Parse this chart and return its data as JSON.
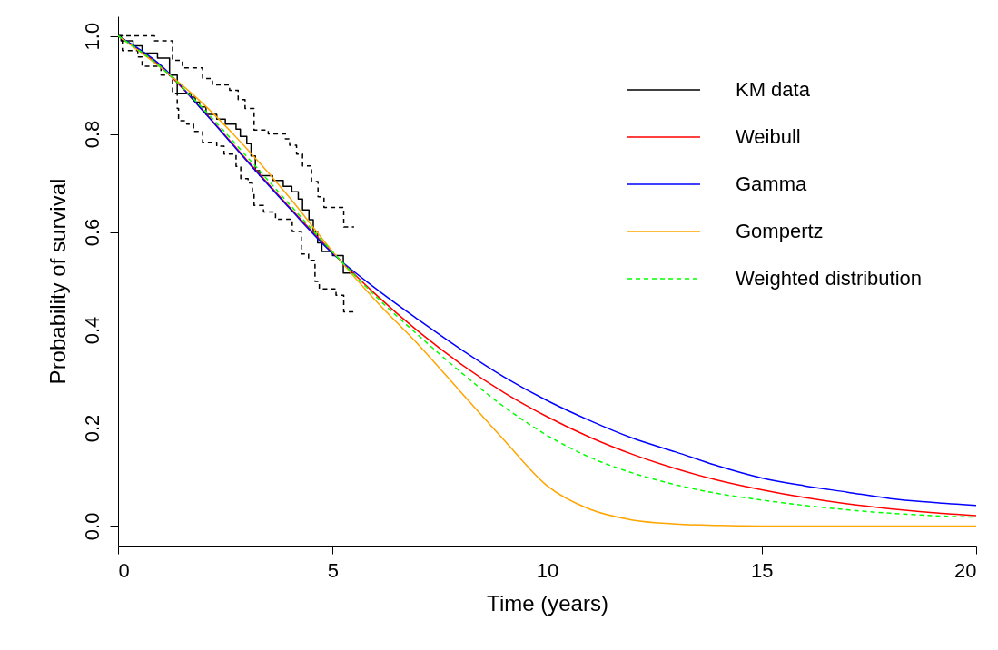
{
  "chart_data": {
    "type": "line",
    "xlabel": "Time (years)",
    "ylabel": "Probability of survival",
    "xlim": [
      0,
      20
    ],
    "xticks": [
      0,
      5,
      10,
      15,
      20
    ],
    "ylim": [
      -0.04,
      1.04
    ],
    "yticks": [
      {
        "value": 0,
        "label": "0.0"
      },
      {
        "value": 0.2,
        "label": "0.2"
      },
      {
        "value": 0.4,
        "label": "0.4"
      },
      {
        "value": 0.6,
        "label": "0.6"
      },
      {
        "value": 0.8,
        "label": "0.8"
      },
      {
        "value": 1,
        "label": "1.0"
      }
    ],
    "grid": false,
    "legend": "top right",
    "series": [
      {
        "name": "KM data",
        "type": "step",
        "color": "#000000",
        "line_style": "solid",
        "x": [
          0,
          0.07,
          0.35,
          0.56,
          0.92,
          1.2,
          1.38,
          1.7,
          1.8,
          1.9,
          2.05,
          2.3,
          2.5,
          2.75,
          2.85,
          3.0,
          3.1,
          3.2,
          3.3,
          3.6,
          3.85,
          4.05,
          4.2,
          4.3,
          4.45,
          4.55,
          4.65,
          4.75,
          5.0,
          5.25,
          5.5
        ],
        "values": [
          1.0,
          0.99,
          0.98,
          0.965,
          0.955,
          0.92,
          0.883,
          0.875,
          0.865,
          0.855,
          0.84,
          0.83,
          0.82,
          0.81,
          0.795,
          0.78,
          0.755,
          0.725,
          0.715,
          0.705,
          0.693,
          0.682,
          0.667,
          0.645,
          0.625,
          0.6,
          0.578,
          0.56,
          0.552,
          0.516,
          0.516
        ]
      },
      {
        "type": "step",
        "color": "#000000",
        "line_style": "dashed",
        "x": [
          0,
          0.1,
          0.46,
          0.56,
          1.0,
          1.27,
          1.38,
          1.41,
          1.6,
          1.76,
          1.97,
          2.3,
          2.47,
          2.75,
          2.86,
          3.03,
          3.13,
          3.17,
          3.39,
          3.67,
          4.06,
          4.27,
          4.44,
          4.59,
          4.69,
          5.08,
          5.26,
          5.5
        ],
        "values": [
          1.0,
          0.97,
          0.957,
          0.938,
          0.92,
          0.883,
          0.852,
          0.827,
          0.82,
          0.805,
          0.783,
          0.775,
          0.759,
          0.734,
          0.709,
          0.7,
          0.679,
          0.654,
          0.641,
          0.626,
          0.601,
          0.555,
          0.542,
          0.499,
          0.484,
          0.471,
          0.437,
          0.437
        ]
      },
      {
        "type": "step",
        "color": "#000000",
        "line_style": "dashed",
        "x": [
          0,
          0.85,
          1.27,
          1.5,
          1.97,
          2.2,
          2.6,
          2.8,
          2.96,
          3.17,
          3.5,
          3.9,
          4.0,
          4.16,
          4.3,
          4.51,
          4.66,
          4.8,
          5.26,
          5.5
        ],
        "values": [
          1.0,
          0.99,
          0.95,
          0.935,
          0.913,
          0.9,
          0.889,
          0.87,
          0.852,
          0.808,
          0.8,
          0.79,
          0.777,
          0.759,
          0.735,
          0.703,
          0.672,
          0.65,
          0.61,
          0.61
        ]
      },
      {
        "name": "Weibull",
        "type": "line",
        "color": "#ff0000",
        "line_style": "solid",
        "x": [
          0,
          1,
          2,
          3,
          4,
          5,
          6,
          7,
          8,
          9,
          10,
          11,
          12,
          13,
          14,
          15,
          16,
          17,
          18,
          19,
          20
        ],
        "values": [
          1.0,
          0.937,
          0.846,
          0.747,
          0.65,
          0.558,
          0.473,
          0.397,
          0.33,
          0.272,
          0.223,
          0.181,
          0.146,
          0.117,
          0.093,
          0.074,
          0.058,
          0.045,
          0.035,
          0.027,
          0.021
        ]
      },
      {
        "name": "Gamma",
        "type": "line",
        "color": "#0000ff",
        "line_style": "solid",
        "x": [
          0,
          1,
          2,
          3,
          4,
          5,
          6,
          7,
          8,
          9,
          10,
          11,
          12,
          13,
          14,
          15,
          16,
          17,
          18,
          19,
          20
        ],
        "values": [
          1.0,
          0.94,
          0.845,
          0.745,
          0.648,
          0.556,
          0.485,
          0.421,
          0.36,
          0.304,
          0.256,
          0.215,
          0.179,
          0.151,
          0.122,
          0.098,
          0.082,
          0.069,
          0.056,
          0.048,
          0.042
        ]
      },
      {
        "name": "Gompertz",
        "type": "line",
        "color": "#ffa500",
        "line_style": "solid",
        "x": [
          0,
          1,
          2,
          3,
          4,
          5,
          6,
          7,
          8,
          9,
          10,
          11,
          12,
          13,
          14,
          15,
          16,
          17,
          18,
          19,
          20
        ],
        "values": [
          1.0,
          0.935,
          0.86,
          0.77,
          0.67,
          0.56,
          0.46,
          0.37,
          0.272,
          0.175,
          0.082,
          0.034,
          0.012,
          0.004,
          0.001,
          0,
          0,
          0,
          0,
          0,
          0
        ]
      },
      {
        "name": "Weighted distribution",
        "type": "line",
        "color": "#00ff00",
        "line_style": "dashed",
        "x": [
          0,
          1,
          2,
          3,
          4,
          5,
          6,
          7,
          8,
          9,
          10,
          11,
          12,
          13,
          14,
          15,
          16,
          17,
          18,
          19,
          20
        ],
        "values": [
          1.0,
          0.936,
          0.85,
          0.754,
          0.656,
          0.559,
          0.469,
          0.389,
          0.313,
          0.243,
          0.185,
          0.14,
          0.108,
          0.084,
          0.066,
          0.053,
          0.042,
          0.033,
          0.026,
          0.021,
          0.018
        ]
      }
    ]
  }
}
